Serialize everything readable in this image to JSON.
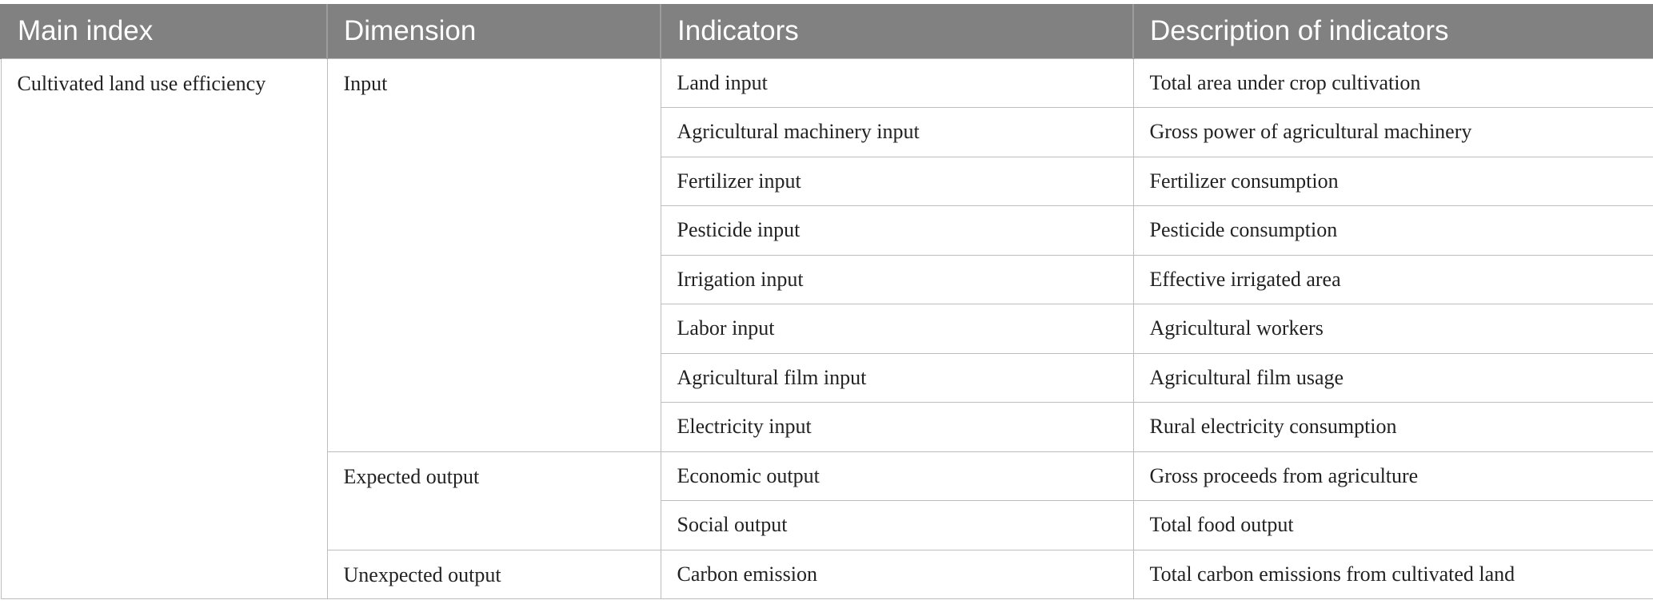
{
  "table": {
    "headers": [
      "Main index",
      "Dimension",
      "Indicators",
      "Description of indicators"
    ],
    "main_index": "Cultivated land use efficiency",
    "dimensions": [
      {
        "label": "Input",
        "rows": [
          {
            "indicator": "Land input",
            "description": "Total area under crop cultivation"
          },
          {
            "indicator": "Agricultural machinery input",
            "description": "Gross power of agricultural machinery"
          },
          {
            "indicator": "Fertilizer input",
            "description": "Fertilizer consumption"
          },
          {
            "indicator": "Pesticide input",
            "description": "Pesticide consumption"
          },
          {
            "indicator": "Irrigation input",
            "description": "Effective irrigated area"
          },
          {
            "indicator": "Labor input",
            "description": "Agricultural workers"
          },
          {
            "indicator": "Agricultural film input",
            "description": "Agricultural film usage"
          },
          {
            "indicator": "Electricity input",
            "description": "Rural electricity consumption"
          }
        ]
      },
      {
        "label": "Expected output",
        "rows": [
          {
            "indicator": "Economic output",
            "description": "Gross proceeds from agriculture"
          },
          {
            "indicator": "Social output",
            "description": "Total food output"
          }
        ]
      },
      {
        "label": "Unexpected output",
        "rows": [
          {
            "indicator": "Carbon emission",
            "description": "Total carbon emissions from cultivated land"
          }
        ]
      }
    ]
  }
}
